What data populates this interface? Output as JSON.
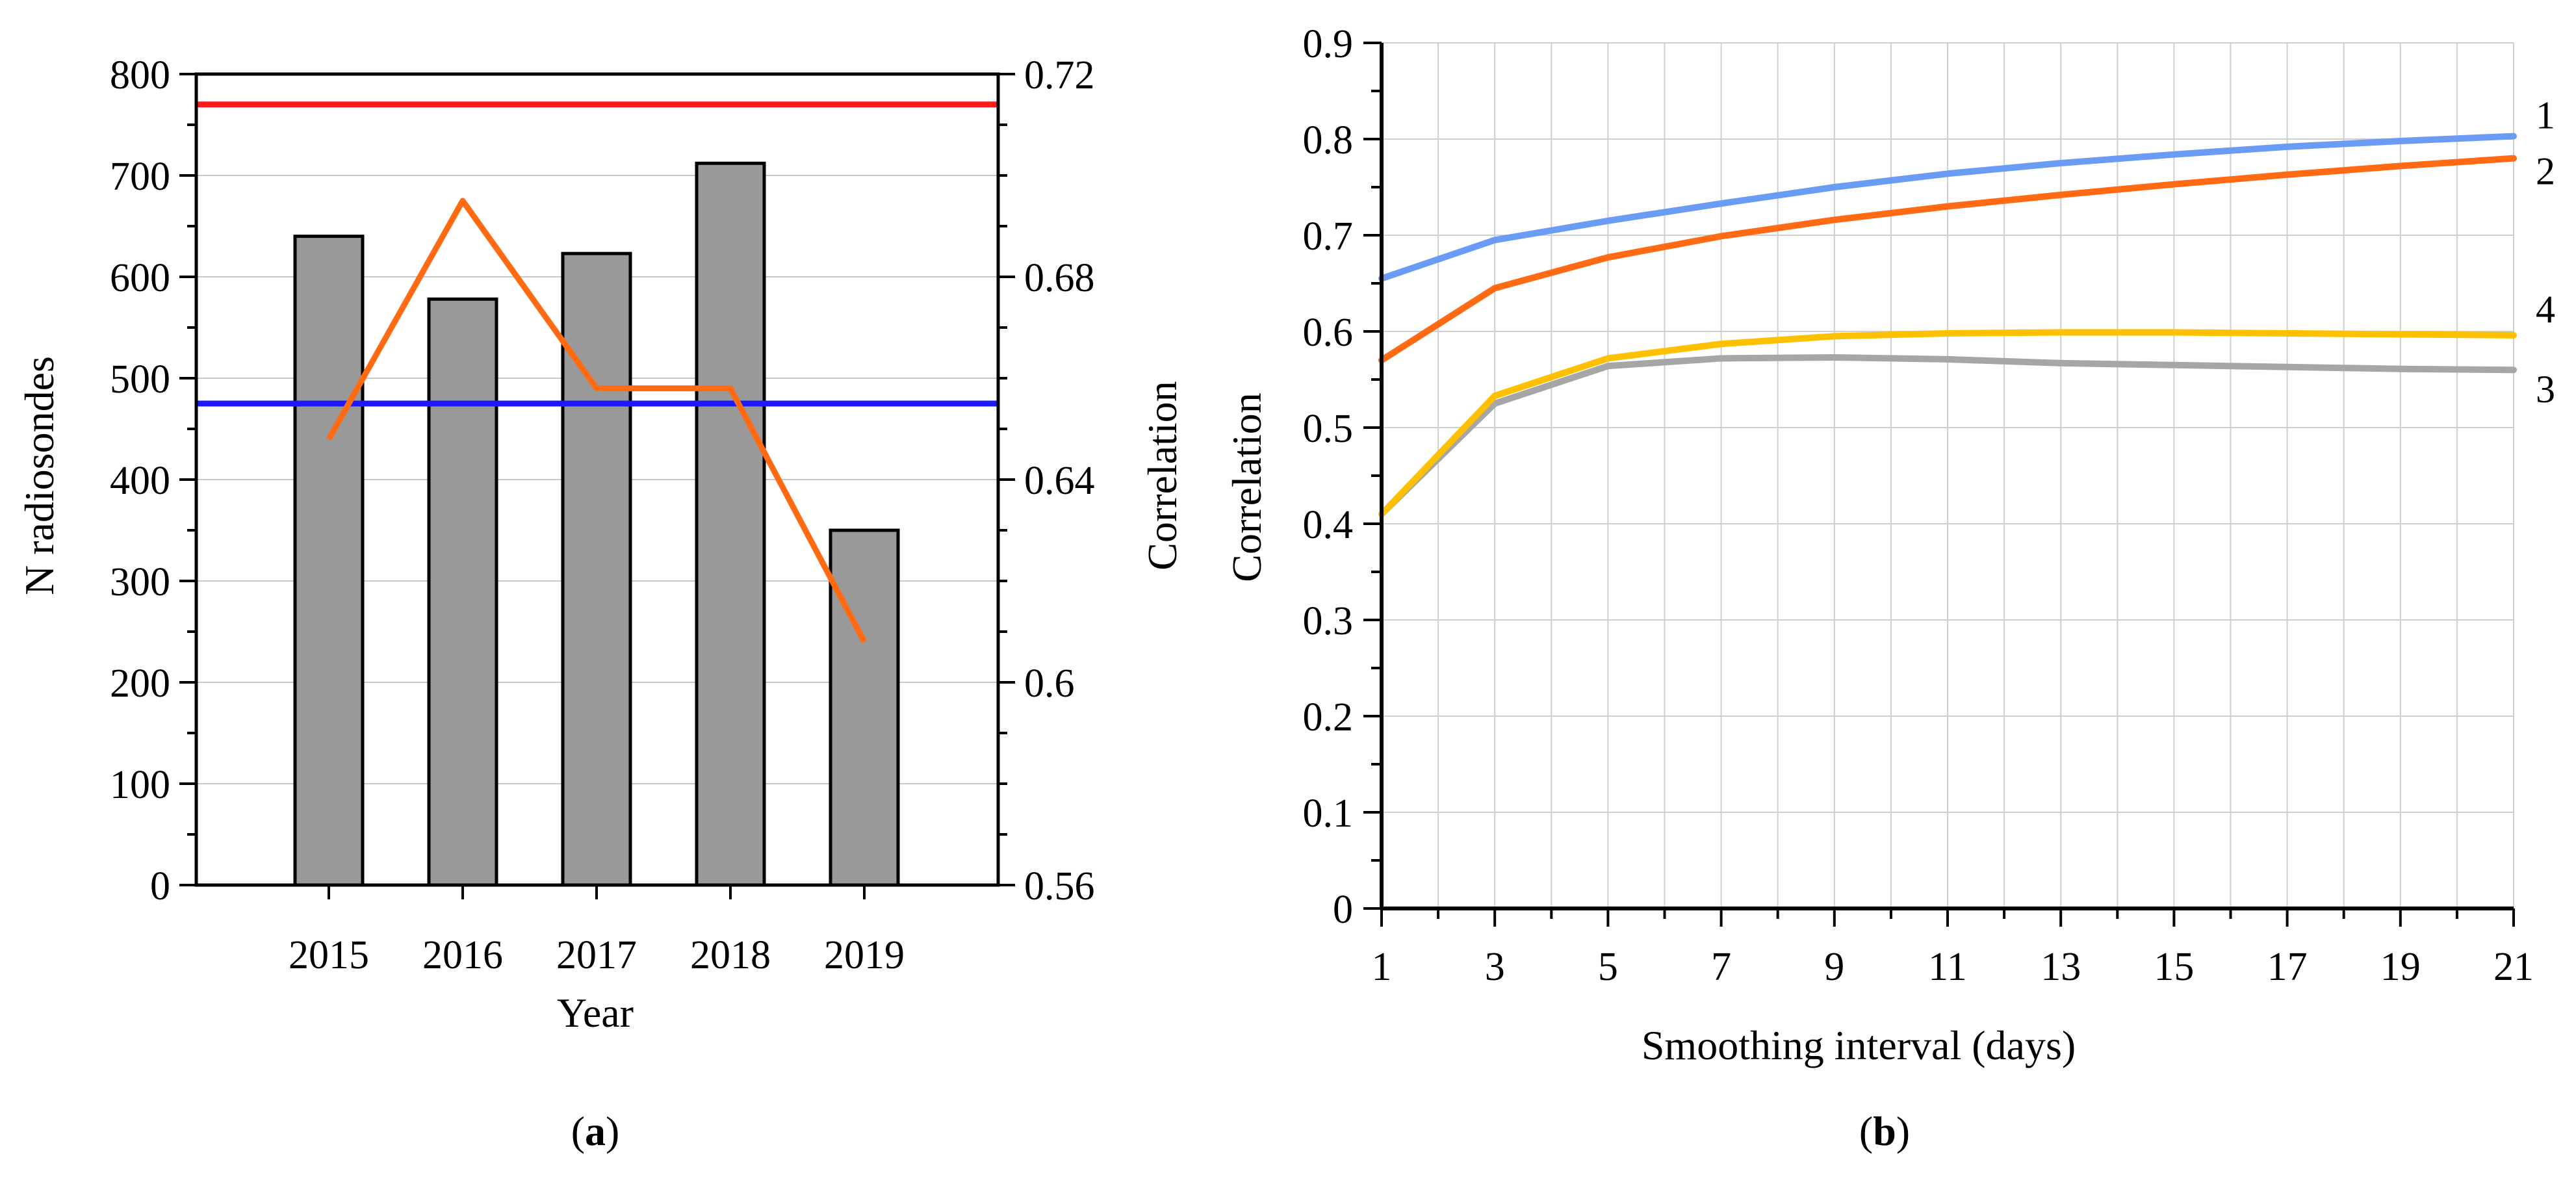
{
  "panels": {
    "a": {
      "caption_letter": "a"
    },
    "b": {
      "caption_letter": "b"
    }
  },
  "chart_data": [
    {
      "id": "a",
      "type": "bar",
      "xlabel": "Year",
      "ylabel": "N radiosondes",
      "y2label": "Correlation",
      "categories": [
        "2015",
        "2016",
        "2017",
        "2018",
        "2019"
      ],
      "values": [
        640,
        578,
        623,
        712,
        350
      ],
      "bar_color": "#999999",
      "ylim": [
        0,
        800
      ],
      "yticks": [
        0,
        100,
        200,
        300,
        400,
        500,
        600,
        700,
        800
      ],
      "ytick_labels": [
        "0",
        "100",
        "200",
        "300",
        "400",
        "500",
        "600",
        "700",
        "800"
      ],
      "y2lim": [
        0.56,
        0.72
      ],
      "y2ticks": [
        0.56,
        0.6,
        0.64,
        0.68,
        0.72
      ],
      "y2tick_labels": [
        "0.56",
        "0.6",
        "0.64",
        "0.68",
        "0.72"
      ],
      "line": {
        "values": [
          0.648,
          0.695,
          0.658,
          0.658,
          0.608
        ],
        "color": "#ff6a13"
      },
      "hlines": [
        {
          "value": 0.714,
          "axis": "right",
          "color": "#ff1a1a"
        },
        {
          "value": 0.655,
          "axis": "right",
          "color": "#1a1aff"
        }
      ],
      "grid": true
    },
    {
      "id": "b",
      "type": "line",
      "xlabel": "Smoothing interval (days)",
      "ylabel": "Correlation",
      "x": [
        1,
        3,
        5,
        7,
        9,
        11,
        13,
        15,
        17,
        19,
        21
      ],
      "xticks": [
        1,
        3,
        5,
        7,
        9,
        11,
        13,
        15,
        17,
        19,
        21
      ],
      "xlim": [
        1,
        21
      ],
      "ylim": [
        0,
        0.9
      ],
      "yticks": [
        0,
        0.1,
        0.2,
        0.3,
        0.4,
        0.5,
        0.6,
        0.7,
        0.8,
        0.9
      ],
      "ytick_labels": [
        "0",
        "0.1",
        "0.2",
        "0.3",
        "0.4",
        "0.5",
        "0.6",
        "0.7",
        "0.8",
        "0.9"
      ],
      "grid": true,
      "series": [
        {
          "label": "1",
          "color": "#6a9bf5",
          "values": [
            0.655,
            0.695,
            0.715,
            0.733,
            0.75,
            0.764,
            0.775,
            0.784,
            0.792,
            0.798,
            0.803
          ]
        },
        {
          "label": "2",
          "color": "#ff6a13",
          "values": [
            0.57,
            0.645,
            0.677,
            0.699,
            0.716,
            0.73,
            0.742,
            0.753,
            0.763,
            0.772,
            0.78
          ]
        },
        {
          "label": "3",
          "color": "#a6a6a6",
          "values": [
            0.41,
            0.525,
            0.564,
            0.572,
            0.573,
            0.571,
            0.567,
            0.565,
            0.563,
            0.561,
            0.56
          ]
        },
        {
          "label": "4",
          "color": "#ffc000",
          "values": [
            0.41,
            0.533,
            0.572,
            0.587,
            0.595,
            0.598,
            0.599,
            0.599,
            0.598,
            0.597,
            0.596
          ]
        }
      ]
    }
  ]
}
